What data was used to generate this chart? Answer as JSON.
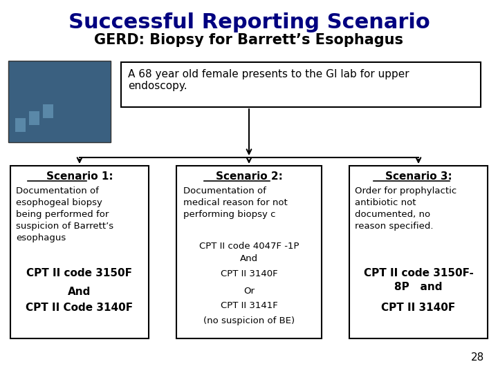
{
  "title": "Successful Reporting Scenario",
  "subtitle": "GERD: Biopsy for Barrett’s Esophagus",
  "title_color": "#000080",
  "subtitle_color": "#000000",
  "intro_box_text": "A 68 year old female presents to the GI lab for upper\nendoscopy.",
  "scenario1_title": "Scenario 1:",
  "scenario1_body": "Documentation of\nesophogeal biopsy\nbeing performed for\nsuspicion of Barrett’s\nesophagus",
  "scenario1_bold1": "CPT II code 3150F",
  "scenario1_mid": "And",
  "scenario1_bold2": "CPT II Code 3140F",
  "scenario2_title": "Scenario 2:",
  "scenario2_body": "Documentation of\nmedical reason for not\nperforming biopsy c",
  "scenario2_code1": "CPT II code 4047F -1P\nAnd",
  "scenario2_code2": "CPT II 3140F",
  "scenario2_or": "Or",
  "scenario2_code3": "CPT II 3141F",
  "scenario2_note": "(no suspicion of BE)",
  "scenario3_title": "Scenario 3:",
  "scenario3_body": "Order for prophylactic\nantibiotic not\ndocumented, no\nreason specified.",
  "scenario3_bold1": "CPT II code 3150F-\n8P   and",
  "scenario3_bold2": "CPT II 3140F",
  "page_num": "28",
  "bg_color": "#ffffff",
  "box_edge_color": "#000000",
  "text_color": "#000000",
  "bold_color": "#000000",
  "arrow_color": "#000000"
}
